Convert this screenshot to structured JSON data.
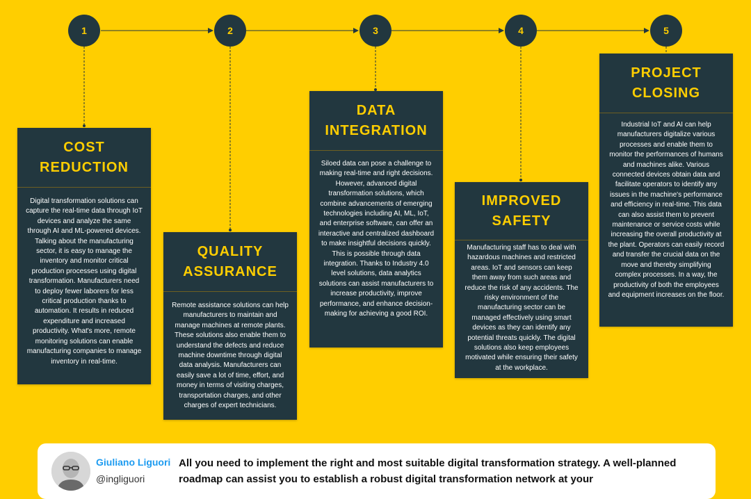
{
  "colors": {
    "background": "#FFCE00",
    "card": "#22373F",
    "accent": "#FFCE00",
    "card_text": "#FFFFFF"
  },
  "steps": [
    {
      "number": "1",
      "title_lines": [
        "COST",
        "REDUCTION"
      ],
      "body": "Digital transformation solutions can capture the real-time data through IoT devices and analyze the same through AI and ML-powered devices. Talking about the manufacturing sector, it is easy to manage the inventory and monitor critical production processes using digital transformation. Manufacturers need to deploy fewer laborers for less critical production thanks to automation. It results in reduced expenditure and increased productivity. What's more, remote monitoring solutions can enable manufacturing companies to manage inventory in real-time."
    },
    {
      "number": "2",
      "title_lines": [
        "QUALITY",
        "ASSURANCE"
      ],
      "body": "Remote assistance solutions can help manufacturers to maintain and manage machines at remote plants. These solutions also enable them to understand the defects and reduce machine downtime through digital data analysis. Manufacturers can easily save a lot of time, effort, and money in terms of visiting charges, transportation charges, and other charges of expert technicians."
    },
    {
      "number": "3",
      "title_lines": [
        "DATA",
        "INTEGRATION"
      ],
      "body": "Siloed data can pose a challenge to making real-time and right decisions. However, advanced digital transformation solutions, which combine advancements of emerging technologies including AI, ML, IoT, and enterprise software, can offer an interactive and centralized dashboard to make insightful decisions quickly. This is possible through data integration. Thanks to Industry 4.0 level solutions, data analytics solutions can assist manufacturers to increase productivity, improve performance, and enhance decision-making for achieving a good ROI."
    },
    {
      "number": "4",
      "title_lines": [
        "IMPROVED",
        "SAFETY"
      ],
      "body": "Manufacturing staff has to deal with hazardous machines and restricted areas. IoT and sensors can keep them away from such areas and reduce the risk of any accidents. The risky environment of the manufacturing sector can be managed effectively using smart devices as they can identify any potential threats quickly. The digital solutions also keep employees motivated while ensuring their safety at the workplace."
    },
    {
      "number": "5",
      "title_lines": [
        "PROJECT",
        "CLOSING"
      ],
      "body": "Industrial IoT and AI can help manufacturers digitalize various processes and enable them to monitor the performances of humans and machines alike. Various connected devices obtain data and facilitate operators to identify any issues in the machine's performance and efficiency in real-time. This data can also assist them to prevent maintenance or service costs while increasing the overall productivity at the plant. Operators can easily record and transfer the crucial data on the move and thereby simplifying complex processes. In a way, the productivity of both the employees and equipment increases on the floor."
    }
  ],
  "tweet": {
    "name": "Giuliano Liguori",
    "handle": "@ingliguori",
    "text": "All you need to implement the right and most suitable digital transformation strategy. A well-planned roadmap can assist you to establish a robust digital transformation network at your"
  }
}
